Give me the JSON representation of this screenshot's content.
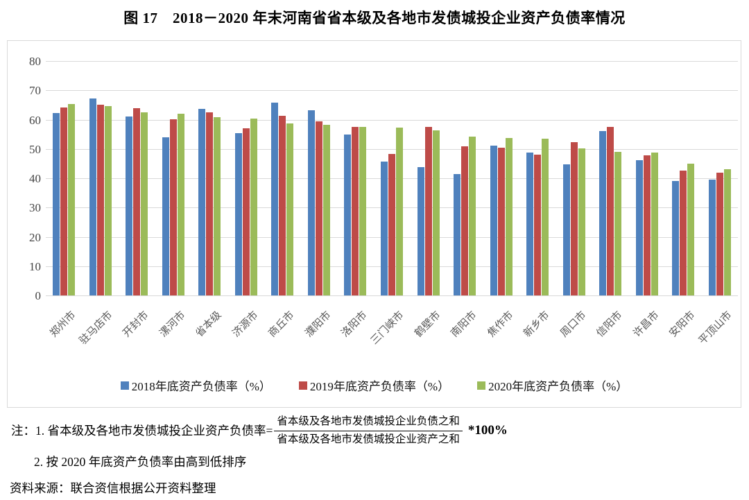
{
  "title": "图 17　2018－2020 年末河南省省本级及各地市发债城投企业资产负债率情况",
  "chart_data": {
    "type": "bar",
    "title": "图 17　2018－2020 年末河南省省本级及各地市发债城投企业资产负债率情况",
    "categories": [
      "郑州市",
      "驻马店市",
      "开封市",
      "漯河市",
      "省本级",
      "济源市",
      "商丘市",
      "濮阳市",
      "洛阳市",
      "三门峡市",
      "鹤壁市",
      "南阳市",
      "焦作市",
      "新乡市",
      "周口市",
      "信阳市",
      "许昌市",
      "安阳市",
      "平顶山市"
    ],
    "series": [
      {
        "name": "2018年底资产负债率（%）",
        "color": "#4F81BD",
        "values": [
          62.3,
          67.3,
          61.1,
          53.9,
          63.7,
          55.5,
          65.8,
          63.3,
          54.8,
          45.6,
          43.7,
          41.5,
          51.2,
          48.8,
          44.8,
          56.2,
          46.1,
          39.0,
          39.6
        ]
      },
      {
        "name": "2019年底资产负债率（%）",
        "color": "#BE4B48",
        "values": [
          64.2,
          65.1,
          63.9,
          60.2,
          62.6,
          57.0,
          61.3,
          59.5,
          57.5,
          48.2,
          57.4,
          51.0,
          50.4,
          48.1,
          52.2,
          57.4,
          47.9,
          42.7,
          41.9
        ]
      },
      {
        "name": "2020年底资产负债率（%）",
        "color": "#9BBB59",
        "values": [
          65.4,
          64.5,
          62.5,
          61.9,
          60.9,
          60.3,
          58.8,
          58.3,
          57.4,
          57.3,
          56.3,
          54.1,
          53.8,
          53.4,
          50.2,
          49.0,
          48.7,
          44.9,
          43.0
        ]
      }
    ],
    "ylim": [
      0,
      80
    ],
    "yticks": [
      0,
      10,
      20,
      30,
      40,
      50,
      60,
      70,
      80
    ],
    "xlabel": "",
    "ylabel": "",
    "grid": true,
    "legend_position": "bottom",
    "x_label_rotation": -45
  },
  "colors": {
    "series_2018": "#4F81BD",
    "series_2019": "#BE4B48",
    "series_2020": "#9BBB59",
    "gridline": "#d9d9d9",
    "axis_text": "#595959",
    "chart_border": "#d9d9d9"
  },
  "notes": {
    "note1_prefix": "注：1. 省本级及各地市发债城投企业资产负债率=",
    "formula_numerator": "省本级及各地市发债城投企业负债之和",
    "formula_denominator": "省本级及各地市发债城投企业资产之和",
    "note1_suffix": "*100%",
    "note2": "2. 按 2020 年底资产负债率由高到低排序",
    "source": "资料来源：联合资信根据公开资料整理"
  }
}
